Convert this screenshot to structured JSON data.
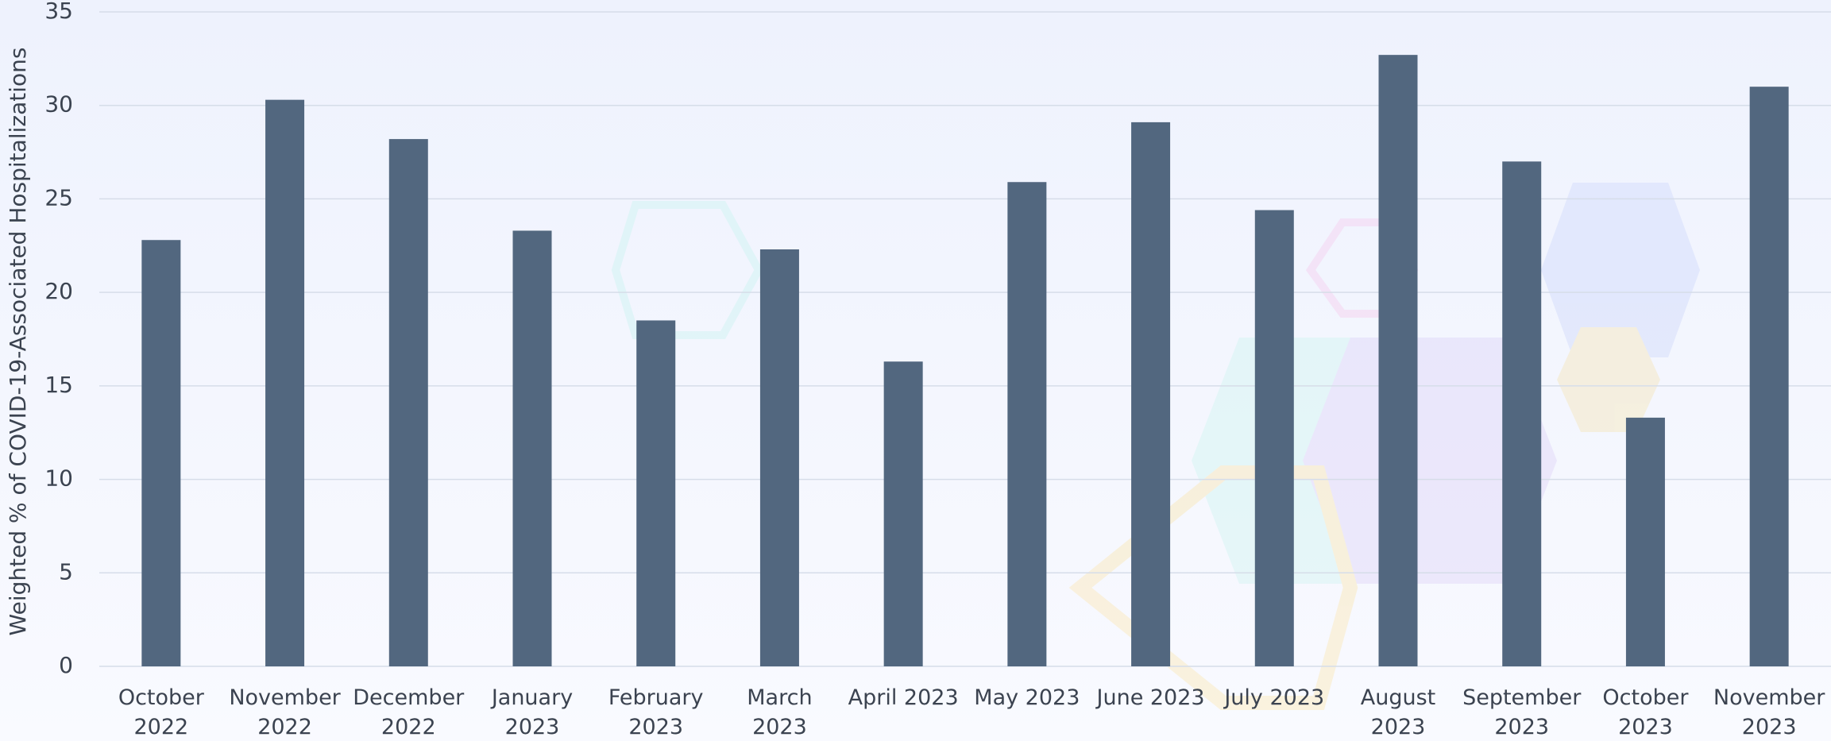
{
  "chart_data": {
    "type": "bar",
    "y_label": "Weighted % of COVID-19-Associated Hospitalizations",
    "categories": [
      "October 2022",
      "November 2022",
      "December 2022",
      "January 2023",
      "February 2023",
      "March 2023",
      "April 2023",
      "May 2023",
      "June 2023",
      "July 2023",
      "August 2023",
      "September 2023",
      "October 2023",
      "November 2023"
    ],
    "values": [
      22.8,
      30.3,
      28.2,
      23.3,
      18.5,
      22.3,
      16.3,
      25.9,
      29.1,
      24.4,
      32.7,
      27.0,
      13.3,
      31.0
    ],
    "color": "#52677f",
    "ylim": [
      0,
      35
    ],
    "yticks": [
      0,
      5,
      10,
      15,
      20,
      25,
      30,
      35
    ],
    "grid": true
  }
}
